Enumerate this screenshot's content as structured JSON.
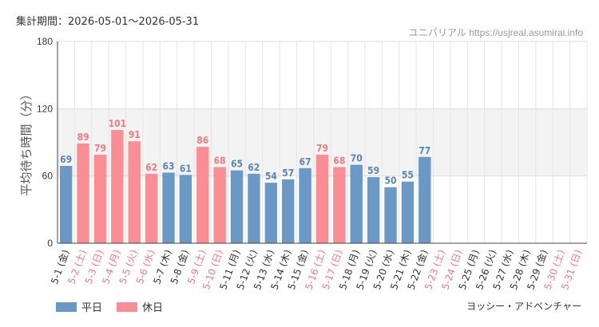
{
  "header": {
    "period_label": "集計期間：2026-05-01〜2026-05-31",
    "source": "ユニバリアル  https://usjreal.asumirai.info"
  },
  "footer": {
    "attraction_name": "ヨッシー・アドベンチャー"
  },
  "legend": {
    "weekday_label": "平日",
    "holiday_label": "休日"
  },
  "colors": {
    "weekday": "#6a98c7",
    "holiday": "#fa8e94",
    "weekday_text": "#5a86b5",
    "holiday_text": "#f07a80",
    "band": "#f3f3f3",
    "grid": "#e6e6e6"
  },
  "chart_data": {
    "type": "bar",
    "ylabel": "平均待ち時間（分）",
    "ylim": [
      0,
      180
    ],
    "yticks": [
      0,
      60,
      120,
      180
    ],
    "band_range": [
      60,
      120
    ],
    "grid": true,
    "legend_position": "bottom-left",
    "categories": [
      "5-1 (金)",
      "5-2 (土)",
      "5-3 (日)",
      "5-4 (月)",
      "5-5 (火)",
      "5-6 (水)",
      "5-7 (木)",
      "5-8 (金)",
      "5-9 (土)",
      "5-10 (日)",
      "5-11 (月)",
      "5-12 (火)",
      "5-13 (水)",
      "5-14 (木)",
      "5-15 (金)",
      "5-16 (土)",
      "5-17 (日)",
      "5-18 (月)",
      "5-19 (火)",
      "5-20 (水)",
      "5-21 (木)",
      "5-22 (金)",
      "5-23 (土)",
      "5-24 (日)",
      "5-25 (月)",
      "5-26 (火)",
      "5-27 (水)",
      "5-28 (木)",
      "5-29 (金)",
      "5-30 (土)",
      "5-31 (日)"
    ],
    "day_type": [
      "weekday",
      "holiday",
      "holiday",
      "holiday",
      "holiday",
      "holiday",
      "weekday",
      "weekday",
      "holiday",
      "holiday",
      "weekday",
      "weekday",
      "weekday",
      "weekday",
      "weekday",
      "holiday",
      "holiday",
      "weekday",
      "weekday",
      "weekday",
      "weekday",
      "weekday",
      "holiday",
      "holiday",
      "weekday",
      "weekday",
      "weekday",
      "weekday",
      "weekday",
      "holiday",
      "holiday"
    ],
    "series": [
      {
        "name": "平日",
        "values": [
          69,
          null,
          null,
          null,
          null,
          null,
          63,
          61,
          null,
          null,
          65,
          62,
          54,
          57,
          67,
          null,
          null,
          70,
          59,
          50,
          55,
          77,
          null,
          null,
          null,
          null,
          null,
          null,
          null,
          null,
          null
        ]
      },
      {
        "name": "休日",
        "values": [
          null,
          89,
          79,
          101,
          91,
          62,
          null,
          null,
          86,
          68,
          null,
          null,
          null,
          null,
          null,
          79,
          68,
          null,
          null,
          null,
          null,
          null,
          null,
          null,
          null,
          null,
          null,
          null,
          null,
          null,
          null
        ]
      }
    ]
  }
}
